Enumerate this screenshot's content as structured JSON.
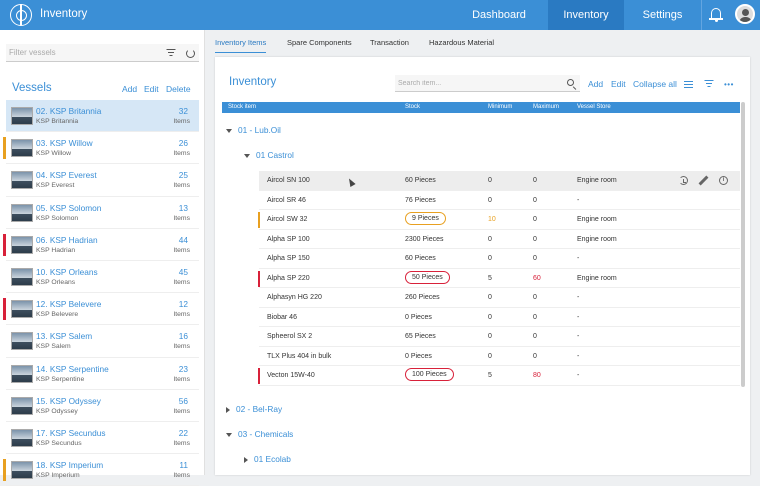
{
  "app": {
    "title": "Inventory"
  },
  "nav": [
    {
      "label": "Dashboard",
      "active": false
    },
    {
      "label": "Inventory",
      "active": true
    },
    {
      "label": "Settings",
      "active": false
    }
  ],
  "left_panel": {
    "filter_placeholder": "Filter vessels",
    "title": "Vessels",
    "actions": [
      "Add",
      "Edit",
      "Delete"
    ],
    "vessels": [
      {
        "name": "02. KSP Britannia",
        "sub": "KSP Britannia",
        "count": "32",
        "unit": "Items",
        "flag": "",
        "selected": true
      },
      {
        "name": "03. KSP Willow",
        "sub": "KSP Willow",
        "count": "26",
        "unit": "Items",
        "flag": "#e8a020",
        "selected": false
      },
      {
        "name": "04. KSP Everest",
        "sub": "KSP Everest",
        "count": "25",
        "unit": "Items",
        "flag": "",
        "selected": false
      },
      {
        "name": "05. KSP Solomon",
        "sub": "KSP Solomon",
        "count": "13",
        "unit": "Items",
        "flag": "",
        "selected": false
      },
      {
        "name": "06. KSP Hadrian",
        "sub": "KSP Hadrian",
        "count": "44",
        "unit": "Items",
        "flag": "#d8213a",
        "selected": false
      },
      {
        "name": "10. KSP Orleans",
        "sub": "KSP Orleans",
        "count": "45",
        "unit": "Items",
        "flag": "",
        "selected": false
      },
      {
        "name": "12. KSP Belevere",
        "sub": "KSP Belevere",
        "count": "12",
        "unit": "Items",
        "flag": "#d8213a",
        "selected": false
      },
      {
        "name": "13. KSP Salem",
        "sub": "KSP Salem",
        "count": "16",
        "unit": "Items",
        "flag": "",
        "selected": false
      },
      {
        "name": "14. KSP Serpentine",
        "sub": "KSP Serpentine",
        "count": "23",
        "unit": "Items",
        "flag": "",
        "selected": false
      },
      {
        "name": "15. KSP Odyssey",
        "sub": "KSP Odyssey",
        "count": "56",
        "unit": "Items",
        "flag": "",
        "selected": false
      },
      {
        "name": "17. KSP Secundus",
        "sub": "KSP Secundus",
        "count": "22",
        "unit": "Items",
        "flag": "",
        "selected": false
      },
      {
        "name": "18. KSP Imperium",
        "sub": "KSP Imperium",
        "count": "11",
        "unit": "Items",
        "flag": "#e8a020",
        "selected": false
      }
    ]
  },
  "tabs": [
    {
      "label": "Inventory Items",
      "active": true
    },
    {
      "label": "Spare Components",
      "active": false
    },
    {
      "label": "Transaction",
      "active": false
    },
    {
      "label": "Hazardous Material",
      "active": false
    }
  ],
  "inventory": {
    "title": "Inventory",
    "search_placeholder": "Search item...",
    "actions": [
      "Add",
      "Edit",
      "Collapse all"
    ],
    "columns": [
      "Stock item",
      "Stock",
      "Minimum",
      "Maximum",
      "Vessel Store"
    ],
    "groups": [
      {
        "label": "01 - Lub.Oil",
        "expanded": true
      },
      {
        "label": "01 Castrol",
        "expanded": true
      },
      {
        "label": "02 - Bel-Ray",
        "expanded": false
      },
      {
        "label": "03 - Chemicals",
        "expanded": true
      },
      {
        "label": "01 Ecolab",
        "expanded": false
      }
    ],
    "rows": [
      {
        "item": "Aircol SN 100",
        "stock": "60 Pieces",
        "min": "0",
        "max": "0",
        "store": "Engine room",
        "status": "",
        "hover": true
      },
      {
        "item": "Aircol SR 46",
        "stock": "76 Pieces",
        "min": "0",
        "max": "0",
        "store": "-",
        "status": ""
      },
      {
        "item": "Aircol SW 32",
        "stock": "9 Pieces",
        "min": "10",
        "max": "0",
        "store": "Engine room",
        "status": "low"
      },
      {
        "item": "Alpha SP 100",
        "stock": "2300 Pieces",
        "min": "0",
        "max": "0",
        "store": "Engine room",
        "status": ""
      },
      {
        "item": "Alpha SP 150",
        "stock": "60 Pieces",
        "min": "0",
        "max": "0",
        "store": "-",
        "status": ""
      },
      {
        "item": "Alpha SP 220",
        "stock": "50 Pieces",
        "min": "5",
        "max": "60",
        "store": "Engine room",
        "status": "critical"
      },
      {
        "item": "Alphasyn HG 220",
        "stock": "260 Pieces",
        "min": "0",
        "max": "0",
        "store": "-",
        "status": ""
      },
      {
        "item": "Biobar 46",
        "stock": "0 Pieces",
        "min": "0",
        "max": "0",
        "store": "-",
        "status": ""
      },
      {
        "item": "Spheerol SX 2",
        "stock": "65 Pieces",
        "min": "0",
        "max": "0",
        "store": "-",
        "status": ""
      },
      {
        "item": "TLX Plus 404 in bulk",
        "stock": "0 Pieces",
        "min": "0",
        "max": "0",
        "store": "-",
        "status": ""
      },
      {
        "item": "Vecton 15W-40",
        "stock": "100 Pieces",
        "min": "5",
        "max": "80",
        "store": "-",
        "status": "critical"
      }
    ],
    "row_icons": [
      "history-icon",
      "edit-icon",
      "info-icon"
    ],
    "info_glyph": "i"
  },
  "colors": {
    "accent": "#3b8fd6",
    "warning": "#e8a020",
    "critical": "#d8213a"
  }
}
